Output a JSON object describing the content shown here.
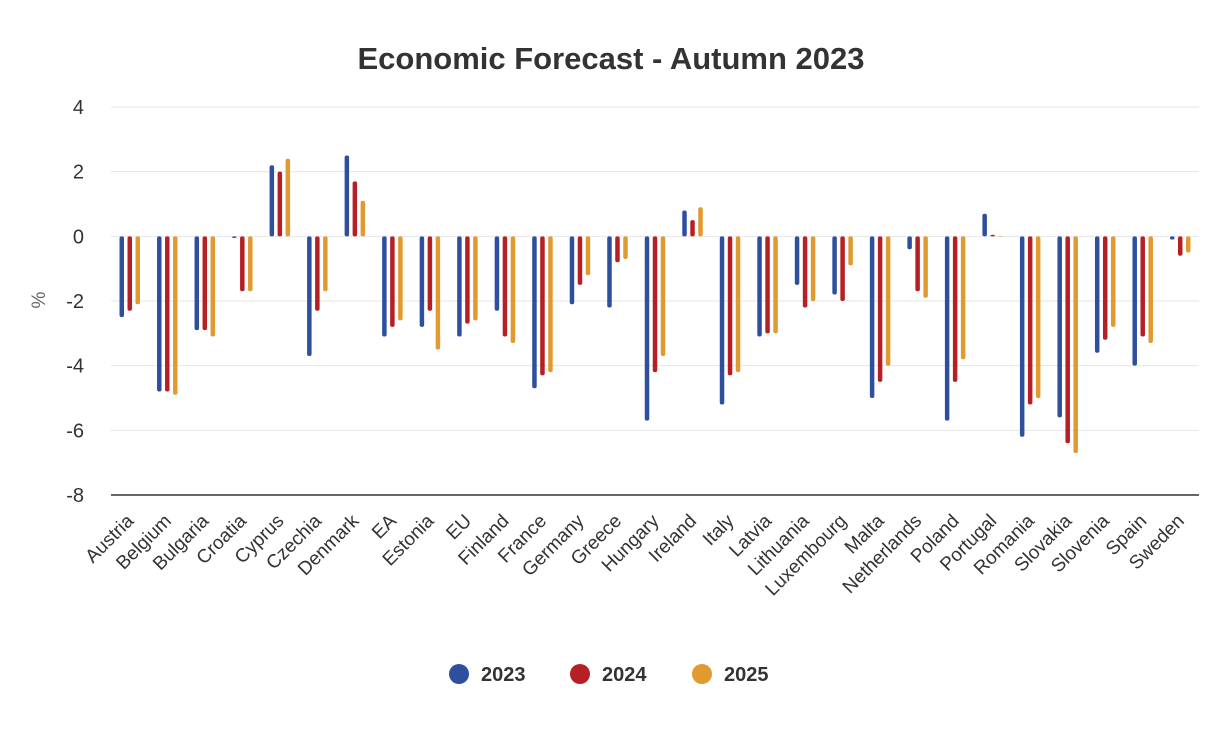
{
  "chart_data": {
    "type": "bar",
    "title": "Economic Forecast - Autumn 2023",
    "xlabel": "",
    "ylabel": "%",
    "ylim": [
      -8,
      4
    ],
    "yticks": [
      -8,
      -6,
      -4,
      -2,
      0,
      2,
      4
    ],
    "grid": true,
    "legend_position": "bottom-center",
    "categories": [
      "Austria",
      "Belgium",
      "Bulgaria",
      "Croatia",
      "Cyprus",
      "Czechia",
      "Denmark",
      "EA",
      "Estonia",
      "EU",
      "Finland",
      "France",
      "Germany",
      "Greece",
      "Hungary",
      "Ireland",
      "Italy",
      "Latvia",
      "Lithuania",
      "Luxembourg",
      "Malta",
      "Netherlands",
      "Poland",
      "Portugal",
      "Romania",
      "Slovakia",
      "Slovenia",
      "Spain",
      "Sweden"
    ],
    "series": [
      {
        "name": "2023",
        "color": "#2e4f9e",
        "values": [
          -2.5,
          -4.8,
          -2.9,
          -0.05,
          2.2,
          -3.7,
          2.5,
          -3.1,
          -2.8,
          -3.1,
          -2.3,
          -4.7,
          -2.1,
          -2.2,
          -5.7,
          0.8,
          -5.2,
          -3.1,
          -1.5,
          -1.8,
          -5.0,
          -0.4,
          -5.7,
          0.7,
          -6.2,
          -5.6,
          -3.6,
          -4.0,
          -0.1
        ]
      },
      {
        "name": "2024",
        "color": "#b52025",
        "values": [
          -2.3,
          -4.8,
          -2.9,
          -1.7,
          2.0,
          -2.3,
          1.7,
          -2.8,
          -2.3,
          -2.7,
          -3.1,
          -4.3,
          -1.5,
          -0.8,
          -4.2,
          0.5,
          -4.3,
          -3.0,
          -2.2,
          -2.0,
          -4.5,
          -1.7,
          -4.5,
          0.05,
          -5.2,
          -6.4,
          -3.2,
          -3.1,
          -0.6
        ]
      },
      {
        "name": "2025",
        "color": "#e09a30",
        "values": [
          -2.1,
          -4.9,
          -3.1,
          -1.7,
          2.4,
          -1.7,
          1.1,
          -2.6,
          -3.5,
          -2.6,
          -3.3,
          -4.2,
          -1.2,
          -0.7,
          -3.7,
          0.9,
          -4.2,
          -3.0,
          -2.0,
          -0.9,
          -4.0,
          -1.9,
          -3.8,
          0.0,
          -5.0,
          -6.7,
          -2.8,
          -3.3,
          -0.5
        ]
      }
    ]
  }
}
